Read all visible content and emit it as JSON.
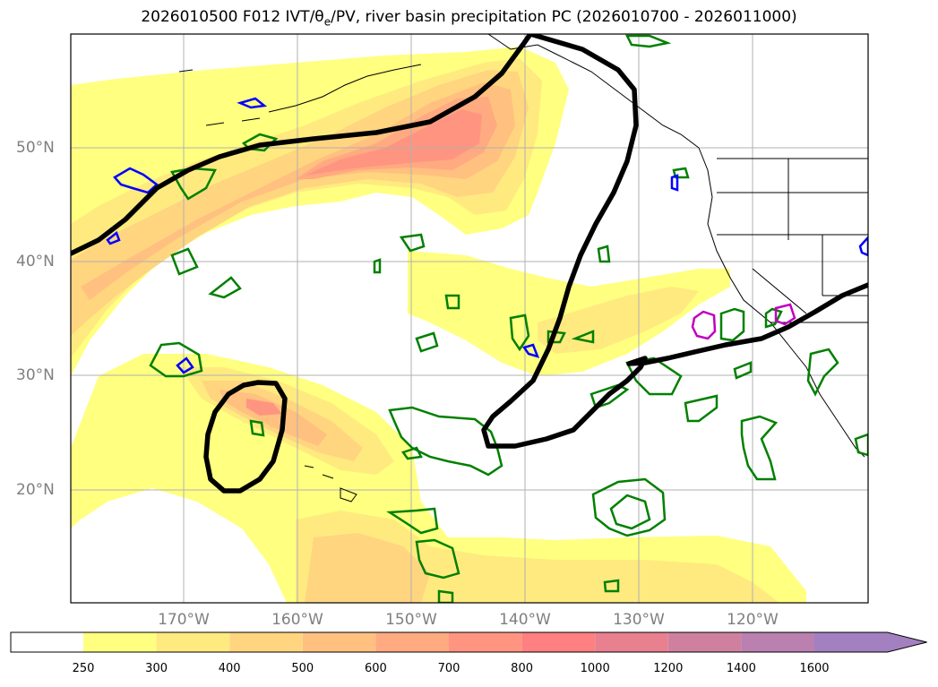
{
  "title": "2026010500 F012 IVT/θe/PV, river basin precipitation PC (2026010700 - 2026011000)",
  "lat_labels": [
    "50°N",
    "40°N",
    "30°N",
    "20°N"
  ],
  "lon_labels": [
    "170°W",
    "160°W",
    "150°W",
    "140°W",
    "130°W",
    "120°W"
  ],
  "colorbar": {
    "labels": [
      "250",
      "300",
      "400",
      "500",
      "600",
      "700",
      "800",
      "1000",
      "1200",
      "1400",
      "1600"
    ],
    "colors": [
      "#ffff80",
      "#ffea80",
      "#ffd580",
      "#ffc080",
      "#ffaa80",
      "#ff9580",
      "#ff8080",
      "#e8808f",
      "#d0809f",
      "#b980b0",
      "#a380c0"
    ],
    "extend": "max"
  },
  "colors": {
    "pv_contour": "#000000",
    "green_contour": "#008000",
    "blue_contour": "#0000ff",
    "magenta_contour": "#c000c0",
    "gridline": "#b0b0b0",
    "coastline": "#000000"
  }
}
